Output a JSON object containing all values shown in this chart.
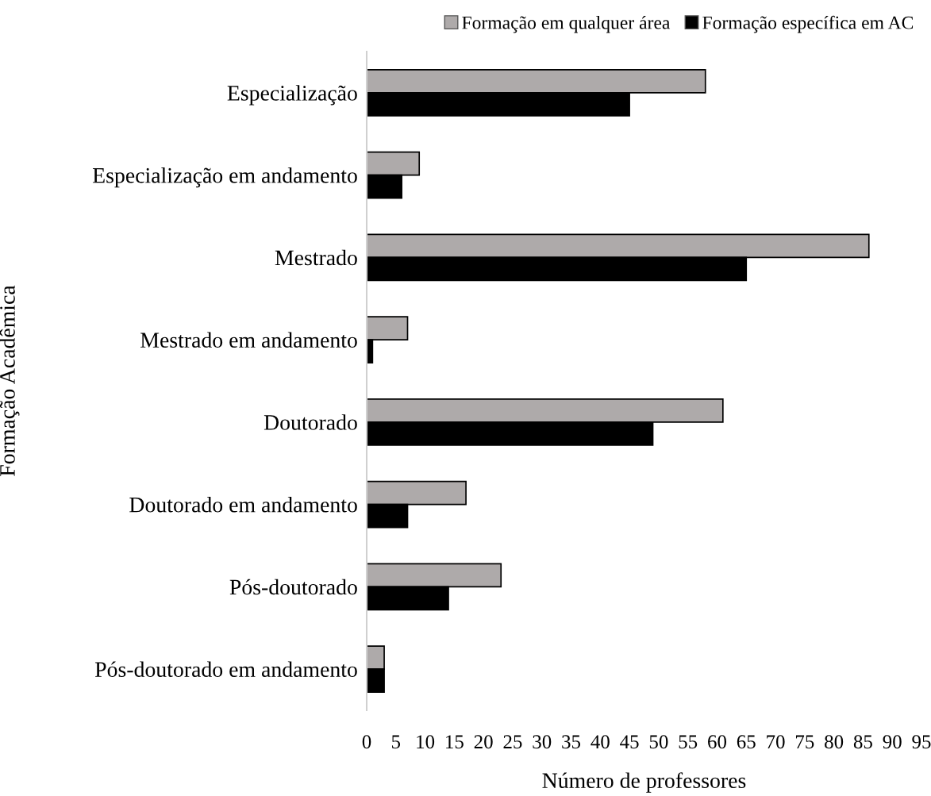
{
  "chart_data": {
    "type": "bar",
    "orientation": "horizontal",
    "xlabel": "Número de professores",
    "ylabel": "Formação Acadêmica",
    "categories": [
      "Especialização",
      "Especialização em andamento",
      "Mestrado",
      "Mestrado em andamento",
      "Doutorado",
      "Doutorado em andamento",
      "Pós-doutorado",
      "Pós-doutorado em andamento"
    ],
    "series": [
      {
        "name": "Formação em qualquer área",
        "color": "#aeaaaa",
        "values": [
          58,
          9,
          86,
          7,
          61,
          17,
          23,
          3
        ]
      },
      {
        "name": "Formação específica em AC",
        "color": "#000000",
        "values": [
          45,
          6,
          65,
          1,
          49,
          7,
          14,
          3
        ]
      }
    ],
    "xlim": [
      0,
      95
    ],
    "xticks": [
      0,
      5,
      10,
      15,
      20,
      25,
      30,
      35,
      40,
      45,
      50,
      55,
      60,
      65,
      70,
      75,
      80,
      85,
      90,
      95
    ],
    "grid": false,
    "legend": "top right"
  }
}
